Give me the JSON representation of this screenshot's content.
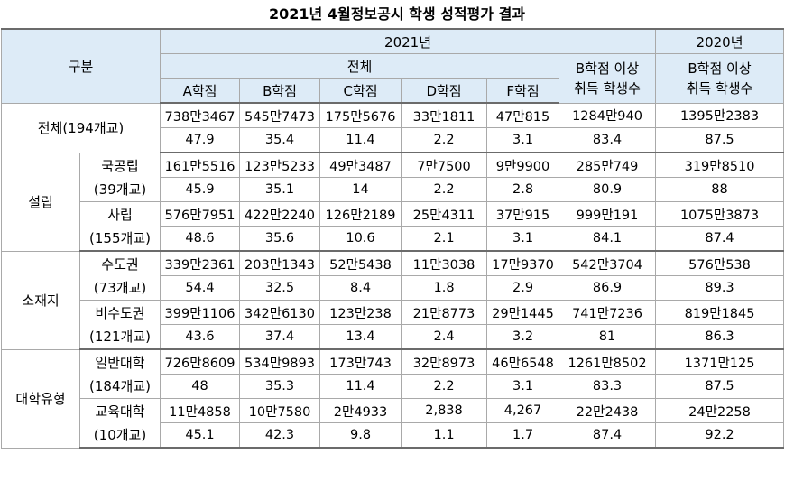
{
  "title": "2021년 4월정보공시 학생 성적평가 결과",
  "header": {
    "category": "구분",
    "year_2021": "2021년",
    "year_2020": "2020년",
    "total": "전체",
    "b_above_line1": "B학점 이상",
    "b_above_line2": "취득 학생수",
    "b_above_2020_line1": "B학점 이상",
    "b_above_2020_line2": "취득 학생수",
    "grades": [
      "A학점",
      "B학점",
      "C학점",
      "D학점",
      "F학점"
    ]
  },
  "rows": {
    "total": {
      "label": "전체(194개교)",
      "counts": [
        "738만3467",
        "545만7473",
        "175만5676",
        "33만1811",
        "47만815",
        "1284만940",
        "1395만2383"
      ],
      "ratios": [
        "47.9",
        "35.4",
        "11.4",
        "2.2",
        "3.1",
        "83.4",
        "87.5"
      ]
    },
    "establishment": {
      "label": "설립",
      "national": {
        "name": "국공립",
        "schools": "(39개교)",
        "counts": [
          "161만5516",
          "123만5233",
          "49만3487",
          "7만7500",
          "9만9900",
          "285만749",
          "319만8510"
        ],
        "ratios": [
          "45.9",
          "35.1",
          "14",
          "2.2",
          "2.8",
          "80.9",
          "88"
        ]
      },
      "private": {
        "name": "사립",
        "schools": "(155개교)",
        "counts": [
          "576만7951",
          "422만2240",
          "126만2189",
          "25만4311",
          "37만915",
          "999만191",
          "1075만3873"
        ],
        "ratios": [
          "48.6",
          "35.6",
          "10.6",
          "2.1",
          "3.1",
          "84.1",
          "87.4"
        ]
      }
    },
    "location": {
      "label": "소재지",
      "capital": {
        "name": "수도권",
        "schools": "(73개교)",
        "counts": [
          "339만2361",
          "203만1343",
          "52만5438",
          "11만3038",
          "17만9370",
          "542만3704",
          "576만538"
        ],
        "ratios": [
          "54.4",
          "32.5",
          "8.4",
          "1.8",
          "2.9",
          "86.9",
          "89.3"
        ]
      },
      "non_capital": {
        "name": "비수도권",
        "schools": "(121개교)",
        "counts": [
          "399만1106",
          "342만6130",
          "123만238",
          "21만8773",
          "29만1445",
          "741만7236",
          "819만1845"
        ],
        "ratios": [
          "43.6",
          "37.4",
          "13.4",
          "2.4",
          "3.2",
          "81",
          "86.3"
        ]
      }
    },
    "univ_type": {
      "label": "대학유형",
      "general": {
        "name": "일반대학",
        "schools": "(184개교)",
        "counts": [
          "726만8609",
          "534만9893",
          "173만743",
          "32만8973",
          "46만6548",
          "1261만8502",
          "1371만125"
        ],
        "ratios": [
          "48",
          "35.3",
          "11.4",
          "2.2",
          "3.1",
          "83.3",
          "87.5"
        ]
      },
      "education": {
        "name": "교육대학",
        "schools": "(10개교)",
        "counts": [
          "11만4858",
          "10만7580",
          "2만4933",
          "2,838",
          "4,267",
          "22만2438",
          "24만2258"
        ],
        "ratios": [
          "45.1",
          "42.3",
          "9.8",
          "1.1",
          "1.7",
          "87.4",
          "92.2"
        ]
      }
    }
  }
}
